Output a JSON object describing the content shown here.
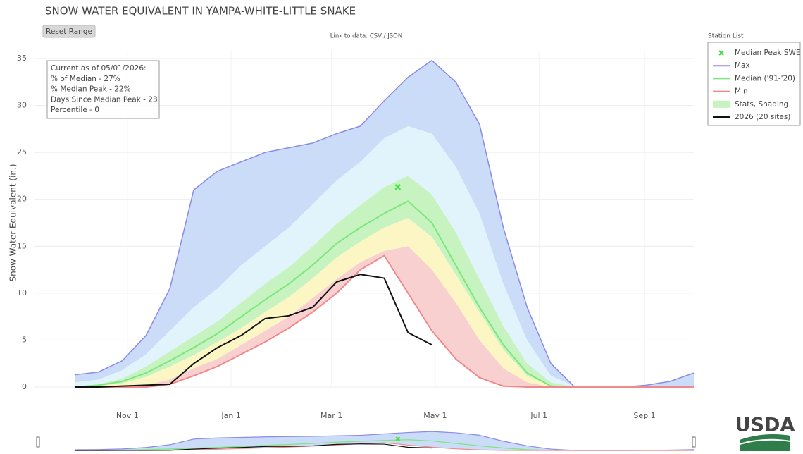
{
  "chart_data": {
    "type": "line",
    "title": "SNOW WATER EQUIVALENT IN YAMPA-WHITE-LITTLE SNAKE",
    "reset_button": "Reset Range",
    "data_link": "Link to data: CSV / JSON",
    "station_list_label": "Station List",
    "logo": "USDA",
    "ylabel": "Snow Water Equivalent (in.)",
    "annotation": [
      "Current as of 05/01/2026:",
      "% of Median - 27%",
      "% Median Peak - 22%",
      "Days Since Median Peak - 23",
      "Percentile - 0"
    ],
    "x": [
      0,
      14,
      28,
      42,
      56,
      70,
      84,
      98,
      112,
      126,
      140,
      154,
      168,
      182,
      196,
      210,
      224,
      238,
      252,
      266,
      280,
      294,
      308,
      322,
      336,
      350,
      364
    ],
    "xlim": [
      -24,
      364
    ],
    "xticks": [
      {
        "value": 31,
        "label": "Nov 1"
      },
      {
        "value": 92,
        "label": "Jan 1"
      },
      {
        "value": 151,
        "label": "Mar 1"
      },
      {
        "value": 212,
        "label": "May 1"
      },
      {
        "value": 273,
        "label": "Jul 1"
      },
      {
        "value": 335,
        "label": "Sep 1"
      }
    ],
    "ylim": [
      0,
      35
    ],
    "yticks": [
      0,
      5,
      10,
      15,
      20,
      25,
      30,
      35
    ],
    "grid": true,
    "legend": "top-right",
    "series": [
      {
        "name": "Median Peak SWE",
        "style": "marker",
        "color": "#3ee03e",
        "x": [
          190
        ],
        "values": [
          21.3
        ]
      },
      {
        "name": "Max",
        "style": "line",
        "color": "#8b8be6",
        "fill": "#cadcf7",
        "values": [
          1.3,
          1.6,
          2.8,
          5.5,
          10.5,
          21,
          23,
          24,
          25,
          25.5,
          26,
          27,
          27.8,
          30.5,
          33,
          34.8,
          32.5,
          28,
          17,
          8.5,
          2.5,
          0,
          0,
          0,
          0.2,
          0.6,
          1.5
        ]
      },
      {
        "name": "Median ('91-'20)",
        "style": "line",
        "color": "#7ee67e",
        "values": [
          0,
          0.2,
          0.6,
          1.5,
          2.8,
          4.2,
          5.7,
          7.5,
          9.3,
          11,
          13,
          15.3,
          17,
          18.5,
          19.8,
          17.5,
          13,
          8.5,
          4.5,
          1.5,
          0.1,
          0,
          0,
          0,
          0,
          0,
          0
        ]
      },
      {
        "name": "Min",
        "style": "line",
        "color": "#f08a8a",
        "values": [
          0,
          0,
          0,
          0,
          0.3,
          1.2,
          2.2,
          3.5,
          4.8,
          6.3,
          8,
          10,
          12.5,
          14,
          10,
          6,
          3,
          1,
          0.1,
          0,
          0,
          0,
          0,
          0,
          0,
          0,
          0
        ]
      },
      {
        "name": "Stats, Shading",
        "style": "band",
        "color": "#c6f3bf",
        "bands": [
          {
            "color": "#f9d0d0",
            "values": [
              0,
              0,
              0,
              0.2,
              0.8,
              2,
              3,
              4.5,
              6,
              7.5,
              9.5,
              11.5,
              13.3,
              14.5,
              15,
              12.5,
              9,
              5,
              2,
              0.5,
              0,
              0,
              0,
              0,
              0,
              0,
              0
            ]
          },
          {
            "color": "#fbf6c4",
            "values": [
              0,
              0.1,
              0.4,
              1.1,
              2.2,
              3.4,
              4.8,
              6.3,
              8,
              9.6,
              11.6,
              13.8,
              15.5,
              17,
              18,
              16,
              12,
              8,
              4,
              1.2,
              0.1,
              0,
              0,
              0,
              0,
              0,
              0
            ]
          },
          {
            "color": "#c6f3bf",
            "values": [
              0,
              0.3,
              0.9,
              2.2,
              3.8,
              5.4,
              7,
              9,
              11,
              12.8,
              15,
              17.4,
              19.4,
              21.3,
              22.5,
              20.5,
              16.5,
              11.5,
              6.5,
              2.5,
              0.5,
              0,
              0,
              0,
              0,
              0,
              0
            ]
          },
          {
            "color": "#e1f3fb",
            "values": [
              0.5,
              0.8,
              1.8,
              3.5,
              6,
              8.5,
              10.5,
              13,
              15,
              17,
              19.5,
              22,
              24,
              26.5,
              27.8,
              27,
              23.5,
              18.5,
              11,
              5,
              1.2,
              0.1,
              0,
              0,
              0,
              0,
              0
            ]
          }
        ]
      },
      {
        "name": "2026 (20 sites)",
        "style": "line",
        "color": "#111111",
        "values": [
          0,
          0,
          0.1,
          0.2,
          0.3,
          2.5,
          4.2,
          5.5,
          7.3,
          7.6,
          8.5,
          11.2,
          12,
          11.6,
          5.8,
          4.5,
          null,
          null,
          null,
          null,
          null,
          null,
          null,
          null,
          null,
          null,
          null
        ]
      }
    ]
  }
}
